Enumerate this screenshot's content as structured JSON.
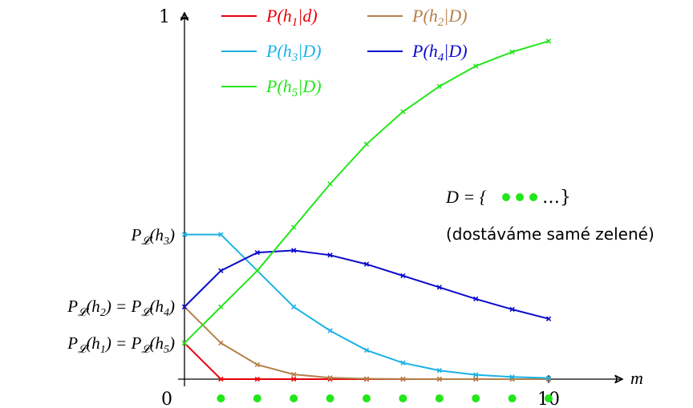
{
  "chart_data": {
    "type": "line",
    "x": [
      0,
      1,
      2,
      3,
      4,
      5,
      6,
      7,
      8,
      9,
      10
    ],
    "xlabel": "m",
    "ylabel": "",
    "xlim": [
      0,
      10
    ],
    "ylim": [
      0,
      1
    ],
    "x_tick_labels": [
      "0",
      "10"
    ],
    "y_tick_labels": [
      "1"
    ],
    "series": [
      {
        "name": "P(h1|d)",
        "color": "#e8000b",
        "values": [
          0.1,
          0,
          0,
          0,
          0,
          0,
          0,
          0,
          0,
          0,
          0
        ]
      },
      {
        "name": "P(h2|D)",
        "color": "#b5804a",
        "values": [
          0.2,
          0.1,
          0.04,
          0.013,
          0.004,
          0.001,
          0.0003,
          0.0001,
          0,
          0,
          0
        ]
      },
      {
        "name": "P(h3|D)",
        "color": "#1ab2e5",
        "values": [
          0.4,
          0.4,
          0.3,
          0.2,
          0.134,
          0.08,
          0.045,
          0.024,
          0.012,
          0.006,
          0.003
        ]
      },
      {
        "name": "P(h4|D)",
        "color": "#0a0acc",
        "values": [
          0.2,
          0.3,
          0.35,
          0.356,
          0.343,
          0.318,
          0.286,
          0.254,
          0.222,
          0.193,
          0.167
        ]
      },
      {
        "name": "P(h5|D)",
        "color": "#22e61a",
        "values": [
          0.1,
          0.2,
          0.3,
          0.42,
          0.54,
          0.65,
          0.74,
          0.81,
          0.866,
          0.905,
          0.935
        ]
      }
    ],
    "legend_position": "top",
    "annotations": {
      "prior_h3": "P𝓛(h3)",
      "prior_h2_h4": "P𝓛(h2) = P𝓛(h4)",
      "prior_h1_h5": "P𝓛(h1) = P𝓛(h5)",
      "data_set": "D = {●●● ...}",
      "data_note": "(dostáváme samé zelené)"
    },
    "observation_dots": {
      "x": [
        1,
        2,
        3,
        4,
        5,
        6,
        7,
        8,
        9,
        10
      ],
      "color": "#22e61a"
    },
    "grid": false
  }
}
